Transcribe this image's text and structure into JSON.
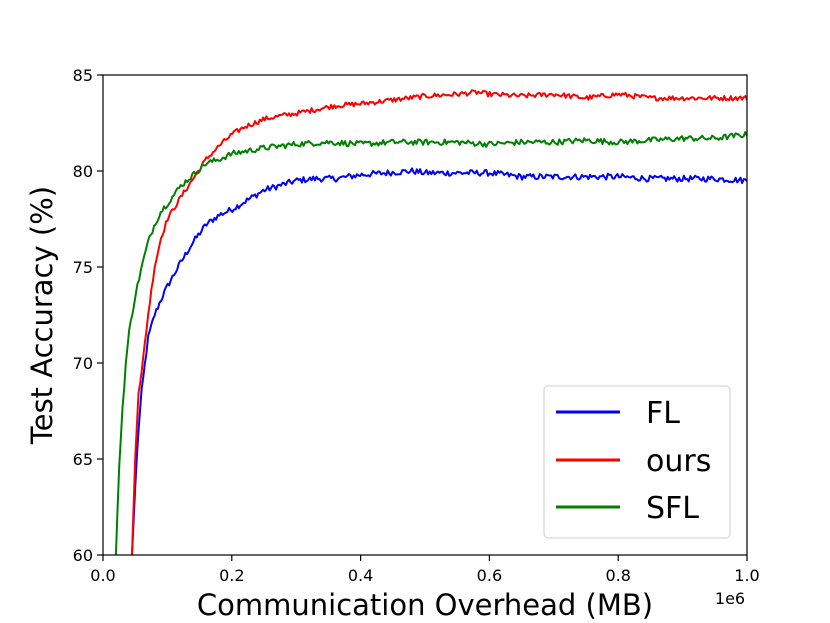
{
  "chart_data": {
    "type": "line",
    "title": "",
    "xlabel": "Communication Overhead (MB)",
    "ylabel": "Test Accuracy (%)",
    "x_offset_label": "1e6",
    "xlim": [
      0.0,
      1.0
    ],
    "ylim": [
      60,
      85
    ],
    "xticks": [
      0.0,
      0.2,
      0.4,
      0.6,
      0.8,
      1.0
    ],
    "xtick_labels": [
      "0.0",
      "0.2",
      "0.4",
      "0.6",
      "0.8",
      "1.0"
    ],
    "yticks": [
      60,
      65,
      70,
      75,
      80,
      85
    ],
    "ytick_labels": [
      "60",
      "65",
      "70",
      "75",
      "80",
      "85"
    ],
    "grid": false,
    "legend_position": "bottom-right",
    "series": [
      {
        "name": "FL",
        "color": "#0000ff",
        "x": [
          0.045,
          0.05,
          0.055,
          0.06,
          0.07,
          0.08,
          0.09,
          0.1,
          0.12,
          0.14,
          0.16,
          0.18,
          0.2,
          0.22,
          0.25,
          0.28,
          0.3,
          0.33,
          0.36,
          0.4,
          0.44,
          0.48,
          0.5,
          0.55,
          0.6,
          0.65,
          0.7,
          0.75,
          0.8,
          0.85,
          0.9,
          0.95,
          1.0
        ],
        "y": [
          60.0,
          63.5,
          66.5,
          68.5,
          71.3,
          72.5,
          73.3,
          74.0,
          75.2,
          76.3,
          77.2,
          77.7,
          78.0,
          78.4,
          79.0,
          79.3,
          79.5,
          79.6,
          79.6,
          79.8,
          79.9,
          80.0,
          79.9,
          79.9,
          79.9,
          79.7,
          79.7,
          79.7,
          79.7,
          79.6,
          79.6,
          79.6,
          79.5
        ]
      },
      {
        "name": "ours",
        "color": "#ff0000",
        "x": [
          0.045,
          0.05,
          0.055,
          0.06,
          0.07,
          0.08,
          0.09,
          0.1,
          0.12,
          0.14,
          0.16,
          0.18,
          0.2,
          0.22,
          0.25,
          0.28,
          0.3,
          0.33,
          0.36,
          0.4,
          0.45,
          0.5,
          0.55,
          0.58,
          0.6,
          0.65,
          0.7,
          0.75,
          0.8,
          0.85,
          0.9,
          0.95,
          1.0
        ],
        "y": [
          60.0,
          65.0,
          68.5,
          69.5,
          72.5,
          75.0,
          76.5,
          77.5,
          78.6,
          79.6,
          80.6,
          81.3,
          81.9,
          82.3,
          82.7,
          82.9,
          83.0,
          83.2,
          83.4,
          83.5,
          83.7,
          83.9,
          84.0,
          84.1,
          84.0,
          83.9,
          84.0,
          83.8,
          84.0,
          83.8,
          83.8,
          83.8,
          83.8
        ]
      },
      {
        "name": "SFL",
        "color": "#008000",
        "x": [
          0.02,
          0.025,
          0.03,
          0.035,
          0.04,
          0.05,
          0.06,
          0.07,
          0.08,
          0.09,
          0.1,
          0.12,
          0.14,
          0.16,
          0.18,
          0.2,
          0.25,
          0.3,
          0.35,
          0.4,
          0.45,
          0.5,
          0.55,
          0.6,
          0.65,
          0.7,
          0.75,
          0.8,
          0.85,
          0.9,
          0.95,
          1.0
        ],
        "y": [
          60.0,
          64.5,
          67.5,
          69.8,
          71.5,
          73.5,
          75.0,
          76.3,
          77.2,
          77.9,
          78.3,
          79.2,
          79.8,
          80.4,
          80.6,
          80.9,
          81.2,
          81.4,
          81.5,
          81.4,
          81.5,
          81.5,
          81.5,
          81.4,
          81.5,
          81.5,
          81.6,
          81.5,
          81.6,
          81.7,
          81.7,
          81.9
        ]
      }
    ]
  }
}
